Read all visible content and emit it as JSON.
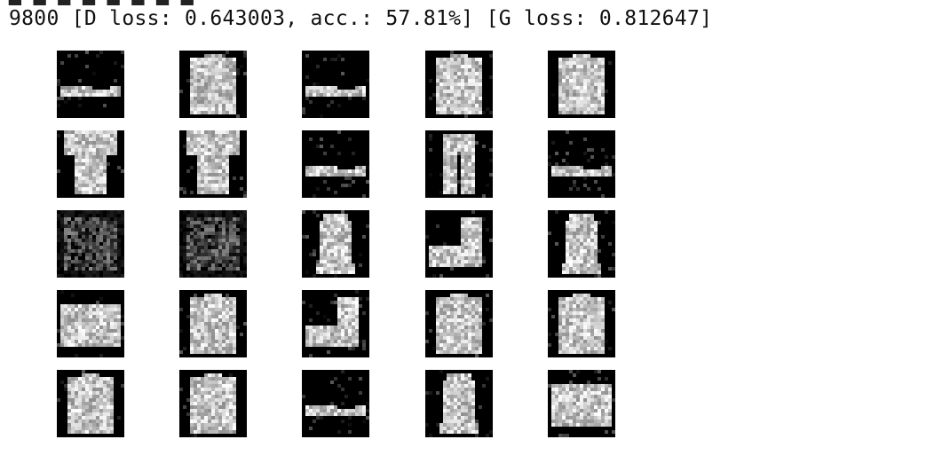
{
  "output": {
    "log_line": "9800 [D loss: 0.643003, acc.: 57.81%] [G loss: 0.812647]"
  },
  "image_grid": {
    "rows": 5,
    "cols": 5,
    "tiles": [
      [
        "sneaker",
        "shirt",
        "sneaker",
        "shirt",
        "shirt"
      ],
      [
        "tshirt",
        "tshirt",
        "sneaker",
        "trousers",
        "sneaker"
      ],
      [
        "noise",
        "noise",
        "dress",
        "boot",
        "dress"
      ],
      [
        "bag",
        "shirt",
        "boot",
        "shirt",
        "shirt"
      ],
      [
        "shirt",
        "shirt",
        "sneaker",
        "dress",
        "bag"
      ]
    ]
  }
}
